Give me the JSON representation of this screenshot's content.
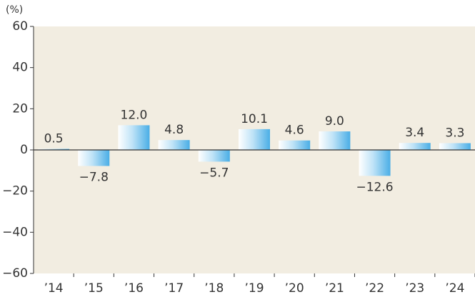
{
  "chart_data": {
    "type": "bar",
    "y_label": "(%)",
    "categories": [
      "’14",
      "’15",
      "’16",
      "’17",
      "’18",
      "’19",
      "’20",
      "’21",
      "’22",
      "’23",
      "’24"
    ],
    "values": [
      0.5,
      -7.8,
      12.0,
      4.8,
      -5.7,
      10.1,
      4.6,
      9.0,
      -12.6,
      3.4,
      3.3
    ],
    "value_labels": [
      "0.5",
      "−7.8",
      "12.0",
      "4.8",
      "−5.7",
      "10.1",
      "4.6",
      "9.0",
      "−12.6",
      "3.4",
      "3.3"
    ],
    "color": "#4aaee6",
    "ylim": [
      -60,
      60
    ],
    "yticks": [
      {
        "value": -60,
        "label": "−60"
      },
      {
        "value": -40,
        "label": "−40"
      },
      {
        "value": -20,
        "label": "−20"
      },
      0,
      20,
      40,
      60
    ]
  }
}
